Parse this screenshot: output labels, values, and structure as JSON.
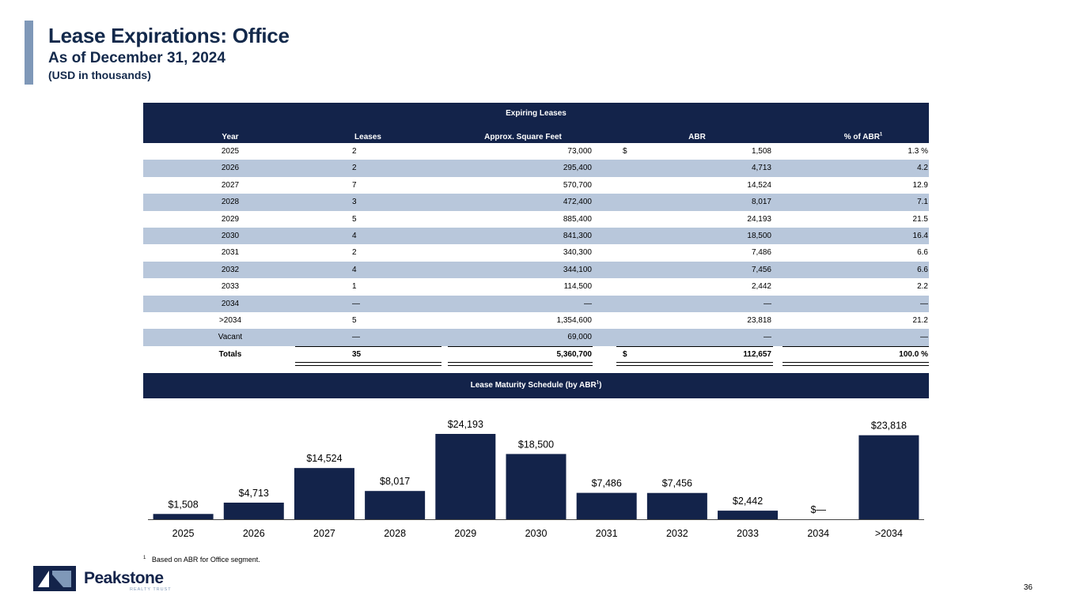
{
  "header": {
    "title": "Lease Expirations: Office",
    "subtitle": "As of December 31, 2024",
    "unit_note": "(USD in thousands)"
  },
  "table": {
    "group_title": "Expiring Leases",
    "columns": {
      "year": "Year",
      "leases": "Leases",
      "sqft": "Approx. Square Feet",
      "abr": "ABR",
      "pct": "% of ABR",
      "pct_footnote": "1"
    },
    "rows": [
      {
        "year": "2025",
        "leases": "2",
        "sqft": "73,000",
        "dollar": "$",
        "abr": "1,508",
        "pct": "1.3 %"
      },
      {
        "year": "2026",
        "leases": "2",
        "sqft": "295,400",
        "dollar": "",
        "abr": "4,713",
        "pct": "4.2"
      },
      {
        "year": "2027",
        "leases": "7",
        "sqft": "570,700",
        "dollar": "",
        "abr": "14,524",
        "pct": "12.9"
      },
      {
        "year": "2028",
        "leases": "3",
        "sqft": "472,400",
        "dollar": "",
        "abr": "8,017",
        "pct": "7.1"
      },
      {
        "year": "2029",
        "leases": "5",
        "sqft": "885,400",
        "dollar": "",
        "abr": "24,193",
        "pct": "21.5"
      },
      {
        "year": "2030",
        "leases": "4",
        "sqft": "841,300",
        "dollar": "",
        "abr": "18,500",
        "pct": "16.4"
      },
      {
        "year": "2031",
        "leases": "2",
        "sqft": "340,300",
        "dollar": "",
        "abr": "7,486",
        "pct": "6.6"
      },
      {
        "year": "2032",
        "leases": "4",
        "sqft": "344,100",
        "dollar": "",
        "abr": "7,456",
        "pct": "6.6"
      },
      {
        "year": "2033",
        "leases": "1",
        "sqft": "114,500",
        "dollar": "",
        "abr": "2,442",
        "pct": "2.2"
      },
      {
        "year": "2034",
        "leases": "—",
        "sqft": "—",
        "dollar": "",
        "abr": "—",
        "pct": "—"
      },
      {
        "year": ">2034",
        "leases": "5",
        "sqft": "1,354,600",
        "dollar": "",
        "abr": "23,818",
        "pct": "21.2"
      },
      {
        "year": "Vacant",
        "leases": "—",
        "sqft": "69,000",
        "dollar": "",
        "abr": "—",
        "pct": "—"
      }
    ],
    "totals": {
      "year": "Totals",
      "leases": "35",
      "sqft": "5,360,700",
      "dollar": "$",
      "abr": "112,657",
      "pct": "100.0 %"
    }
  },
  "schedule": {
    "title": "Lease Maturity Schedule (by ABR",
    "title_footnote": "1",
    "title_end": ")"
  },
  "chart_data": {
    "type": "bar",
    "title": "Lease Maturity Schedule (by ABR)",
    "categories": [
      "2025",
      "2026",
      "2027",
      "2028",
      "2029",
      "2030",
      "2031",
      "2032",
      "2033",
      "2034",
      ">2034"
    ],
    "values": [
      1508,
      4713,
      14524,
      8017,
      24193,
      18500,
      7486,
      7456,
      2442,
      0,
      23818
    ],
    "data_labels": [
      "$1,508",
      "$4,713",
      "$14,524",
      "$8,017",
      "$24,193",
      "$18,500",
      "$7,486",
      "$7,456",
      "$2,442",
      "$—",
      "$23,818"
    ],
    "xlabel": "",
    "ylabel": "",
    "ylim": [
      0,
      24193
    ],
    "bar_color": "#13234a"
  },
  "footnote": {
    "marker": "1",
    "text": "Based on ABR for Office segment."
  },
  "logo": {
    "name": "Peakstone",
    "sub": "REALTY TRUST"
  },
  "page_number": "36"
}
